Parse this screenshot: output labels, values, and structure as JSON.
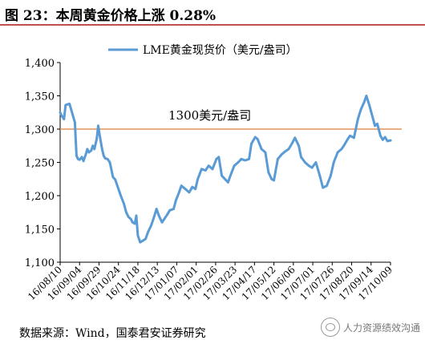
{
  "figure": {
    "title": "图  23：本周黄金价格上涨 0.28%",
    "source": "数据来源：Wind，国泰君安证券研究",
    "watermark": "人力资源绩效沟通"
  },
  "colors": {
    "title_rule": "#c0504d",
    "series_line": "#5b9bd5",
    "reference_line": "#e3935a",
    "axis": "#000000"
  },
  "chart_data": {
    "type": "line",
    "title": "",
    "xlabel": "",
    "ylabel": "",
    "ylim": [
      1100,
      1400
    ],
    "yticks": [
      1100,
      1150,
      1200,
      1250,
      1300,
      1350,
      1400
    ],
    "ytick_labels": [
      "1,100",
      "1,150",
      "1,200",
      "1,250",
      "1,300",
      "1,350",
      "1,400"
    ],
    "x_range": [
      "2016-08-10",
      "2017-10-09"
    ],
    "xtick_labels": [
      "16/08/10",
      "16/09/04",
      "16/09/29",
      "16/10/24",
      "16/11/18",
      "16/12/13",
      "17/01/07",
      "17/02/01",
      "17/02/26",
      "17/03/23",
      "17/04/17",
      "17/05/12",
      "17/06/06",
      "17/07/01",
      "17/07/26",
      "17/08/20",
      "17/09/14",
      "17/10/09"
    ],
    "legend": {
      "position": "top",
      "entries": [
        "LME黄金现货价（美元/盎司）"
      ]
    },
    "reference_line": {
      "value": 1300,
      "label": "1300美元/盎司"
    },
    "grid": false,
    "series": [
      {
        "name": "LME黄金现货价（美元/盎司）",
        "x": [
          "2016-08-10",
          "2016-08-12",
          "2016-08-15",
          "2016-08-17",
          "2016-08-19",
          "2016-08-22",
          "2016-08-24",
          "2016-08-26",
          "2016-08-29",
          "2016-08-31",
          "2016-09-02",
          "2016-09-04",
          "2016-09-07",
          "2016-09-09",
          "2016-09-12",
          "2016-09-14",
          "2016-09-16",
          "2016-09-19",
          "2016-09-21",
          "2016-09-23",
          "2016-09-26",
          "2016-09-28",
          "2016-09-30",
          "2016-10-03",
          "2016-10-05",
          "2016-10-07",
          "2016-10-10",
          "2016-10-13",
          "2016-10-17",
          "2016-10-20",
          "2016-10-24",
          "2016-10-27",
          "2016-10-31",
          "2016-11-03",
          "2016-11-06",
          "2016-11-09",
          "2016-11-11",
          "2016-11-14",
          "2016-11-16",
          "2016-11-18",
          "2016-11-21",
          "2016-11-24",
          "2016-11-28",
          "2016-12-01",
          "2016-12-05",
          "2016-12-08",
          "2016-12-12",
          "2016-12-15",
          "2016-12-19",
          "2016-12-22",
          "2016-12-26",
          "2016-12-29",
          "2017-01-03",
          "2017-01-06",
          "2017-01-10",
          "2017-01-13",
          "2017-01-18",
          "2017-01-23",
          "2017-01-27",
          "2017-01-31",
          "2017-02-03",
          "2017-02-08",
          "2017-02-13",
          "2017-02-17",
          "2017-02-22",
          "2017-02-27",
          "2017-03-02",
          "2017-03-06",
          "2017-03-10",
          "2017-03-14",
          "2017-03-17",
          "2017-03-22",
          "2017-03-27",
          "2017-03-31",
          "2017-04-05",
          "2017-04-10",
          "2017-04-13",
          "2017-04-18",
          "2017-04-21",
          "2017-04-26",
          "2017-05-01",
          "2017-05-05",
          "2017-05-09",
          "2017-05-12",
          "2017-05-17",
          "2017-05-22",
          "2017-05-26",
          "2017-05-31",
          "2017-06-05",
          "2017-06-08",
          "2017-06-13",
          "2017-06-16",
          "2017-06-21",
          "2017-06-26",
          "2017-06-30",
          "2017-07-05",
          "2017-07-10",
          "2017-07-14",
          "2017-07-19",
          "2017-07-24",
          "2017-07-28",
          "2017-08-02",
          "2017-08-07",
          "2017-08-10",
          "2017-08-15",
          "2017-08-18",
          "2017-08-23",
          "2017-08-28",
          "2017-09-01",
          "2017-09-05",
          "2017-09-08",
          "2017-09-12",
          "2017-09-15",
          "2017-09-19",
          "2017-09-22",
          "2017-09-26",
          "2017-09-29",
          "2017-10-02",
          "2017-10-05",
          "2017-10-09"
        ],
        "values": [
          1325,
          1320,
          1315,
          1336,
          1337,
          1338,
          1330,
          1322,
          1310,
          1260,
          1255,
          1254,
          1258,
          1252,
          1262,
          1270,
          1265,
          1268,
          1275,
          1270,
          1285,
          1305,
          1290,
          1270,
          1260,
          1256,
          1255,
          1250,
          1228,
          1224,
          1210,
          1200,
          1188,
          1175,
          1168,
          1165,
          1160,
          1158,
          1170,
          1140,
          1130,
          1132,
          1135,
          1145,
          1155,
          1165,
          1180,
          1170,
          1160,
          1165,
          1172,
          1178,
          1180,
          1193,
          1205,
          1215,
          1210,
          1205,
          1213,
          1210,
          1225,
          1240,
          1238,
          1245,
          1240,
          1255,
          1258,
          1230,
          1225,
          1220,
          1230,
          1245,
          1250,
          1255,
          1253,
          1255,
          1278,
          1288,
          1285,
          1270,
          1265,
          1235,
          1225,
          1223,
          1255,
          1262,
          1266,
          1270,
          1280,
          1287,
          1275,
          1258,
          1250,
          1245,
          1242,
          1250,
          1230,
          1212,
          1215,
          1230,
          1250,
          1265,
          1270,
          1275,
          1285,
          1290,
          1287,
          1315,
          1330,
          1340,
          1350,
          1335,
          1322,
          1305,
          1308,
          1290,
          1284,
          1288,
          1282,
          1283
        ]
      }
    ]
  }
}
